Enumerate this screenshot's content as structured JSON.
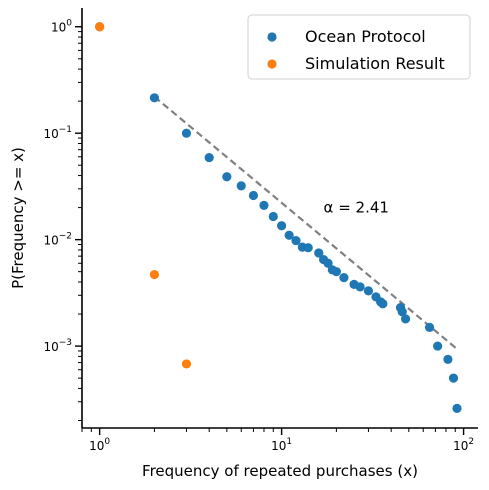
{
  "chart_data": {
    "type": "scatter",
    "xlabel": "Frequency of repeated purchases (x)",
    "ylabel": "P(Frequency >= x)",
    "xscale": "log",
    "yscale": "log",
    "xlim": [
      0.8,
      120
    ],
    "ylim": [
      0.00017,
      1.5
    ],
    "x_ticks": [
      {
        "value": 1,
        "base": "10",
        "exp": "0"
      },
      {
        "value": 10,
        "base": "10",
        "exp": "1"
      },
      {
        "value": 100,
        "base": "10",
        "exp": "2"
      }
    ],
    "y_ticks": [
      {
        "value": 0.001,
        "base": "10",
        "exp": "−3"
      },
      {
        "value": 0.01,
        "base": "10",
        "exp": "−2"
      },
      {
        "value": 0.1,
        "base": "10",
        "exp": "−1"
      },
      {
        "value": 1,
        "base": "10",
        "exp": "0"
      }
    ],
    "grid": false,
    "legend_position": "top-right",
    "annotation": "α = 2.41",
    "annotation_at": {
      "x": 17,
      "y": 0.018
    },
    "series": [
      {
        "name": "Ocean Protocol",
        "color": "#1f77b4",
        "points": [
          [
            1,
            1.0
          ],
          [
            2,
            0.215
          ],
          [
            3,
            0.1
          ],
          [
            4,
            0.059
          ],
          [
            5,
            0.039
          ],
          [
            6,
            0.032
          ],
          [
            7,
            0.026
          ],
          [
            8,
            0.021
          ],
          [
            9,
            0.0165
          ],
          [
            10,
            0.0135
          ],
          [
            11,
            0.011
          ],
          [
            12,
            0.0098
          ],
          [
            13,
            0.0085
          ],
          [
            14,
            0.0084
          ],
          [
            16,
            0.0075
          ],
          [
            17,
            0.0065
          ],
          [
            18,
            0.006
          ],
          [
            19,
            0.0052
          ],
          [
            20,
            0.005
          ],
          [
            22,
            0.0044
          ],
          [
            25,
            0.0038
          ],
          [
            27,
            0.0036
          ],
          [
            30,
            0.0033
          ],
          [
            33,
            0.0029
          ],
          [
            35,
            0.0026
          ],
          [
            36,
            0.0025
          ],
          [
            45,
            0.0023
          ],
          [
            46,
            0.0021
          ],
          [
            48,
            0.0018
          ],
          [
            65,
            0.0015
          ],
          [
            72,
            0.001
          ],
          [
            82,
            0.00075
          ],
          [
            88,
            0.0005
          ],
          [
            92,
            0.00026
          ]
        ]
      },
      {
        "name": "Simulation Result",
        "color": "#ff7f0e",
        "points": [
          [
            1,
            1.0
          ],
          [
            2,
            0.0047
          ],
          [
            3,
            0.00068
          ]
        ]
      }
    ],
    "fit_line": {
      "color": "#808080",
      "style": "dashed",
      "points": [
        [
          2,
          0.22
        ],
        [
          92,
          0.00094
        ]
      ]
    }
  }
}
